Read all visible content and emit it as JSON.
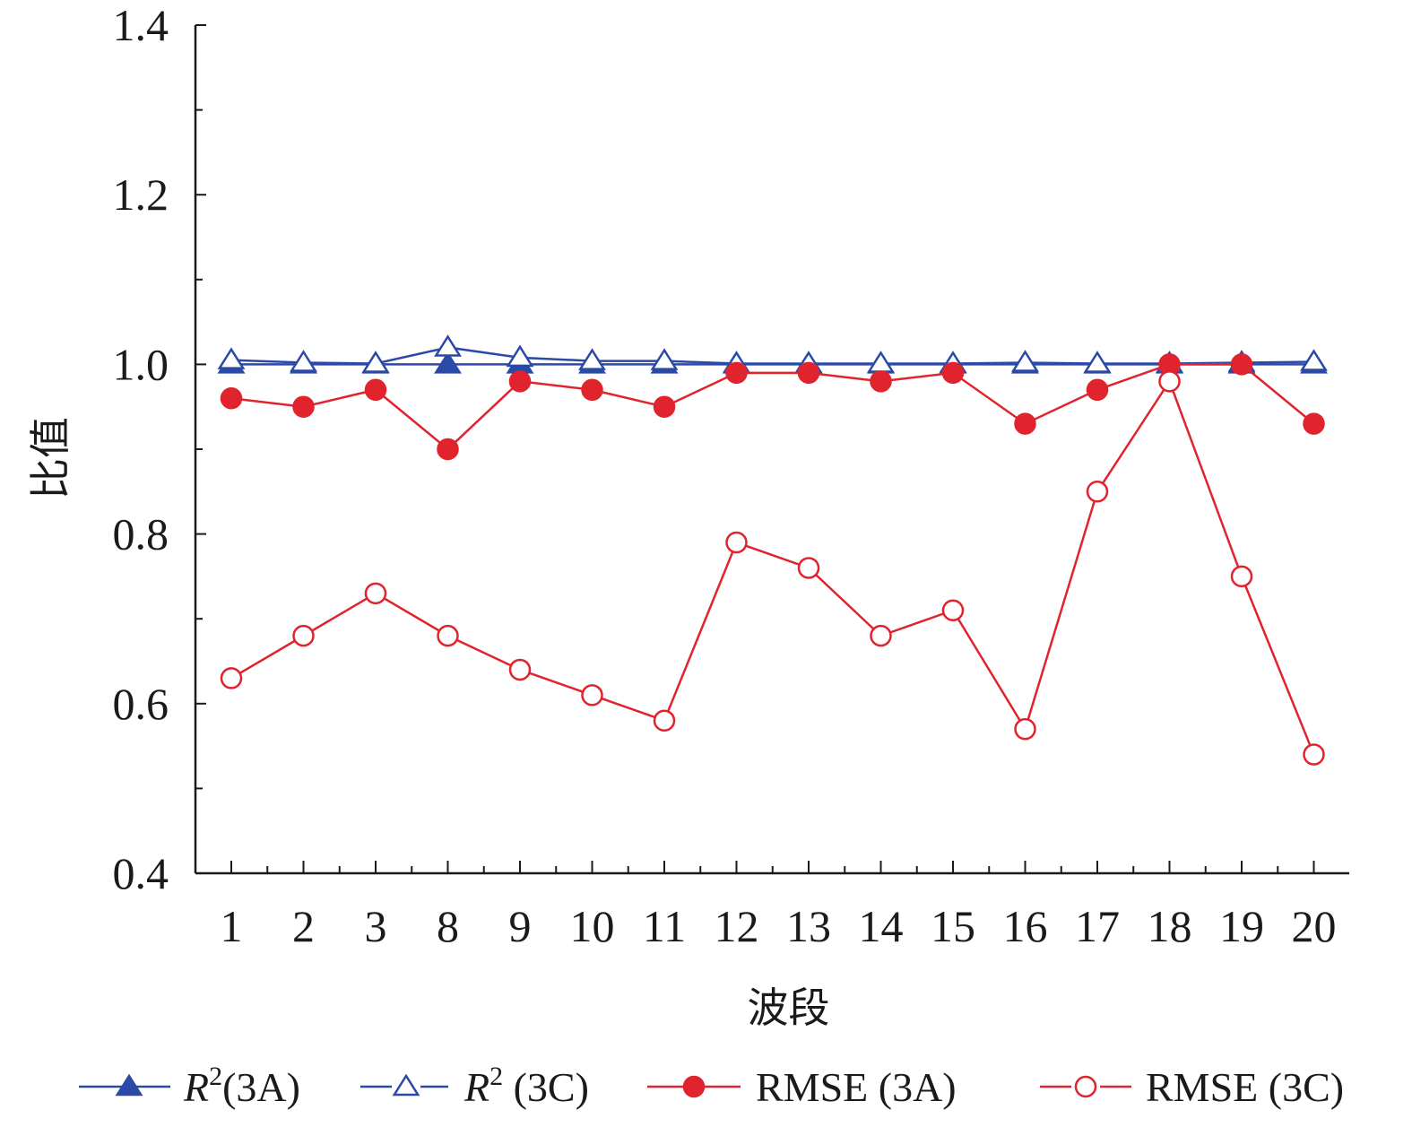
{
  "chart_data": {
    "type": "line",
    "title": "",
    "xlabel": "波段",
    "ylabel": "比值",
    "categories": [
      "1",
      "2",
      "3",
      "8",
      "9",
      "10",
      "11",
      "12",
      "13",
      "14",
      "15",
      "16",
      "17",
      "18",
      "19",
      "20"
    ],
    "ylim": [
      0.4,
      1.4
    ],
    "yticks": [
      "0.4",
      "0.6",
      "0.8",
      "1.0",
      "1.2",
      "1.4"
    ],
    "grid": false,
    "legend_position": "bottom",
    "series": [
      {
        "key": "r2_3a",
        "name": "R²(3A)",
        "name_parts": {
          "italic": "R",
          "sup": "2",
          "rest": "(3A)"
        },
        "color": "#2b4aa8",
        "marker": "filled-triangle",
        "values": [
          1.0,
          1.0,
          1.0,
          1.0,
          1.0,
          1.0,
          1.0,
          1.0,
          1.0,
          1.0,
          1.0,
          1.0,
          1.0,
          1.0,
          1.0,
          1.0
        ]
      },
      {
        "key": "r2_3c",
        "name": "R² (3C)",
        "name_parts": {
          "italic": "R",
          "sup": "2",
          "rest": " (3C)"
        },
        "color": "#2b4aa8",
        "marker": "open-triangle",
        "values": [
          1.005,
          1.002,
          1.001,
          1.02,
          1.008,
          1.004,
          1.004,
          1.001,
          1.001,
          1.001,
          1.001,
          1.002,
          1.001,
          1.001,
          1.002,
          1.003
        ]
      },
      {
        "key": "rmse_3a",
        "name": "RMSE (3A)",
        "color": "#e0232c",
        "marker": "filled-circle",
        "values": [
          0.96,
          0.95,
          0.97,
          0.9,
          0.98,
          0.97,
          0.95,
          0.99,
          0.99,
          0.98,
          0.99,
          0.93,
          0.97,
          1.0,
          1.0,
          0.93
        ]
      },
      {
        "key": "rmse_3c",
        "name": "RMSE (3C)",
        "color": "#e0232c",
        "marker": "open-circle",
        "values": [
          0.63,
          0.68,
          0.73,
          0.68,
          0.64,
          0.61,
          0.58,
          0.79,
          0.76,
          0.68,
          0.71,
          0.57,
          0.85,
          0.98,
          0.75,
          0.54
        ]
      }
    ]
  }
}
